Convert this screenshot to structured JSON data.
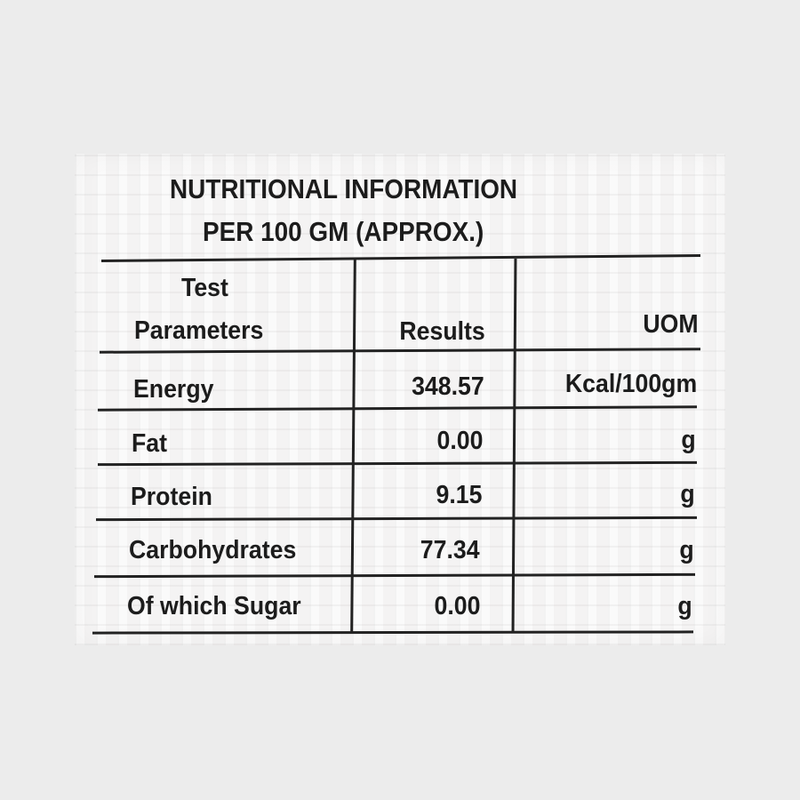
{
  "title": {
    "line1": "NUTRITIONAL INFORMATION",
    "line2": "PER 100 GM (APPROX.)"
  },
  "headers": {
    "param_line1": "Test",
    "param_line2": "Parameters",
    "results": "Results",
    "uom": "UOM"
  },
  "rows": [
    {
      "parameter": "Energy",
      "result": "348.57",
      "uom": "Kcal/100gm"
    },
    {
      "parameter": "Fat",
      "result": "0.00",
      "uom": "g"
    },
    {
      "parameter": "Protein",
      "result": "9.15",
      "uom": "g"
    },
    {
      "parameter": "Carbohydrates",
      "result": "77.34",
      "uom": "g"
    },
    {
      "parameter": "Of which Sugar",
      "result": "0.00",
      "uom": "g"
    }
  ],
  "colors": {
    "background": "#ececec",
    "label": "#f4f3f3",
    "ink": "#1c1c1c"
  }
}
